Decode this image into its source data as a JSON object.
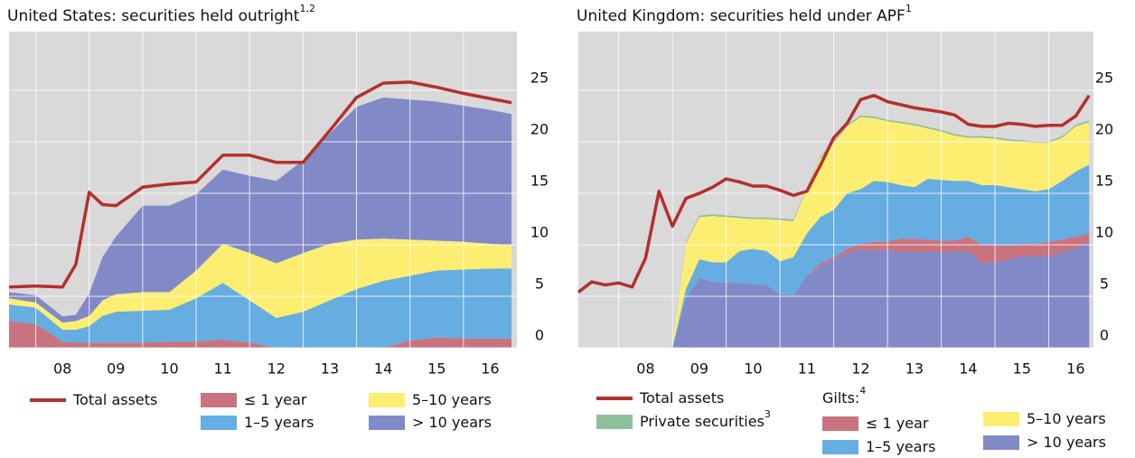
{
  "chart_data": [
    {
      "type": "area",
      "title": "United States: securities held outright",
      "title_superscript": "1,2",
      "x": [
        2007.5,
        2008.0,
        2008.5,
        2008.75,
        2009.0,
        2009.25,
        2009.5,
        2010.0,
        2010.5,
        2011.0,
        2011.5,
        2012.0,
        2012.5,
        2013.0,
        2013.5,
        2014.0,
        2014.5,
        2015.0,
        2015.5,
        2016.0,
        2016.5,
        2016.9
      ],
      "xlim": [
        2007.5,
        2017.0
      ],
      "xticks": [
        {
          "value": 2008,
          "label": "08"
        },
        {
          "value": 2009,
          "label": "09"
        },
        {
          "value": 2010,
          "label": "10"
        },
        {
          "value": 2011,
          "label": "11"
        },
        {
          "value": 2012,
          "label": "12"
        },
        {
          "value": 2013,
          "label": "13"
        },
        {
          "value": 2014,
          "label": "14"
        },
        {
          "value": 2015,
          "label": "15"
        },
        {
          "value": 2016,
          "label": "16"
        }
      ],
      "ylim": [
        0,
        30.7
      ],
      "yticks": [
        0,
        5,
        10,
        15,
        20,
        25
      ],
      "grid": true,
      "stacked": true,
      "series": [
        {
          "name": "Total assets",
          "type": "line",
          "color": "#b3302d",
          "values": [
            5.9,
            6.0,
            5.9,
            8.1,
            15.1,
            13.9,
            13.8,
            15.6,
            15.9,
            16.1,
            18.7,
            18.7,
            18.0,
            18.0,
            21.1,
            24.3,
            25.7,
            25.8,
            25.3,
            24.7,
            24.2,
            23.8
          ]
        },
        {
          "name": "≤ 1 year",
          "color": "#c9737f",
          "values": [
            2.6,
            2.3,
            0.6,
            0.5,
            0.5,
            0.5,
            0.5,
            0.5,
            0.6,
            0.6,
            0.8,
            0.5,
            0,
            0,
            0,
            0,
            0,
            0.7,
            1.0,
            0.9,
            0.9,
            0.9
          ]
        },
        {
          "name": "1–5 years",
          "color": "#66ade2",
          "values": [
            1.6,
            1.6,
            1.15,
            1.25,
            1.6,
            2.6,
            3.0,
            3.1,
            3.1,
            4.2,
            5.5,
            4.1,
            2.9,
            3.5,
            4.6,
            5.7,
            6.5,
            6.3,
            6.5,
            6.7,
            6.8,
            6.8
          ]
        },
        {
          "name": "5–10 years",
          "color": "#fdee72",
          "values": [
            0.6,
            0.5,
            0.7,
            0.85,
            1.0,
            1.5,
            1.7,
            1.8,
            1.7,
            2.7,
            3.8,
            4.6,
            5.3,
            5.7,
            5.5,
            4.8,
            4.1,
            3.5,
            2.9,
            2.7,
            2.4,
            2.3
          ]
        },
        {
          "name": "> 10 years",
          "color": "#8189c7",
          "values": [
            0.6,
            0.7,
            0.6,
            0.6,
            2.2,
            4.2,
            5.6,
            8.4,
            8.4,
            7.4,
            7.2,
            7.5,
            8.0,
            9.0,
            10.7,
            12.9,
            13.7,
            13.6,
            13.5,
            13.2,
            13.0,
            12.7
          ]
        }
      ]
    },
    {
      "type": "area",
      "title": "United Kingdom: securities held under APF",
      "title_superscript": "1",
      "x": [
        2007.25,
        2007.5,
        2007.75,
        2008.0,
        2008.25,
        2008.5,
        2008.75,
        2009.0,
        2009.25,
        2009.5,
        2009.75,
        2010.0,
        2010.25,
        2010.5,
        2010.75,
        2011.0,
        2011.25,
        2011.5,
        2011.75,
        2012.0,
        2012.25,
        2012.5,
        2012.75,
        2013.0,
        2013.25,
        2013.5,
        2013.75,
        2014.0,
        2014.25,
        2014.5,
        2014.75,
        2015.0,
        2015.25,
        2015.5,
        2015.75,
        2016.0,
        2016.25,
        2016.5,
        2016.75
      ],
      "xlim": [
        2007.25,
        2016.83
      ],
      "xticks": [
        {
          "value": 2008,
          "label": "08"
        },
        {
          "value": 2009,
          "label": "09"
        },
        {
          "value": 2010,
          "label": "10"
        },
        {
          "value": 2011,
          "label": "11"
        },
        {
          "value": 2012,
          "label": "12"
        },
        {
          "value": 2013,
          "label": "13"
        },
        {
          "value": 2014,
          "label": "14"
        },
        {
          "value": 2015,
          "label": "15"
        },
        {
          "value": 2016,
          "label": "16"
        }
      ],
      "ylim": [
        0,
        30.7
      ],
      "yticks": [
        0,
        5,
        10,
        15,
        20,
        25
      ],
      "grid": true,
      "stacked": true,
      "legend_group_title": "Gilts:",
      "legend_group_superscript": "4",
      "series": [
        {
          "name": "Total assets",
          "type": "line",
          "color": "#b3302d",
          "values": [
            5.4,
            6.4,
            6.1,
            6.3,
            5.9,
            8.7,
            15.2,
            11.8,
            14.5,
            15.0,
            15.6,
            16.4,
            16.1,
            15.7,
            15.7,
            15.3,
            14.8,
            15.2,
            17.7,
            20.4,
            21.8,
            24.1,
            24.5,
            23.9,
            23.6,
            23.3,
            23.1,
            22.9,
            22.6,
            21.7,
            21.5,
            21.5,
            21.8,
            21.7,
            21.5,
            21.6,
            21.6,
            22.5,
            24.5
          ]
        },
        {
          "name": "> 10 years",
          "color": "#8189c7",
          "values": [
            null,
            null,
            null,
            null,
            null,
            null,
            null,
            0,
            4.8,
            6.8,
            6.4,
            6.3,
            6.3,
            6.2,
            6.1,
            5.2,
            5.1,
            7.0,
            7.9,
            8.6,
            9.2,
            9.5,
            9.5,
            9.5,
            9.3,
            9.3,
            9.3,
            9.3,
            9.3,
            9.4,
            8.2,
            8.3,
            8.6,
            8.9,
            8.9,
            8.9,
            9.3,
            9.7,
            10.3
          ]
        },
        {
          "name": "≤ 1 year",
          "color": "#c9737f",
          "values": [
            null,
            null,
            null,
            null,
            null,
            null,
            null,
            0,
            0,
            0,
            0,
            0,
            0,
            0,
            0,
            0,
            0,
            0,
            0.3,
            0.2,
            0.4,
            0.6,
            0.8,
            0.8,
            1.3,
            1.3,
            1.2,
            1.1,
            1.1,
            1.4,
            1.8,
            1.7,
            1.3,
            1.2,
            1.2,
            1.4,
            1.2,
            1.1,
            0.8
          ]
        },
        {
          "name": "1–5 years",
          "color": "#66ade2",
          "values": [
            null,
            null,
            null,
            null,
            null,
            null,
            null,
            0,
            0.9,
            1.8,
            1.9,
            2.0,
            3.1,
            3.4,
            3.3,
            3.2,
            3.7,
            4.1,
            4.5,
            4.6,
            5.4,
            5.3,
            5.9,
            5.8,
            5.2,
            5.0,
            5.9,
            5.9,
            5.8,
            5.4,
            5.8,
            5.8,
            5.7,
            5.3,
            5.1,
            5.1,
            5.7,
            6.3,
            6.7
          ]
        },
        {
          "name": "5–10 years",
          "color": "#fdee72",
          "values": [
            null,
            null,
            null,
            null,
            null,
            null,
            null,
            0,
            4.4,
            4.1,
            4.5,
            4.4,
            3.2,
            2.9,
            3.1,
            4.0,
            3.5,
            4.3,
            5.7,
            6.5,
            6.5,
            7.0,
            6.1,
            5.9,
            6.0,
            6.0,
            4.9,
            4.7,
            4.4,
            4.2,
            4.6,
            4.5,
            4.5,
            4.6,
            4.7,
            4.5,
            4.2,
            4.4,
            4.1
          ]
        },
        {
          "name": "Private securities",
          "name_superscript": "3",
          "color": "#8fbf9b",
          "values": [
            null,
            null,
            null,
            null,
            null,
            null,
            null,
            0,
            0.15,
            0.15,
            0.15,
            0.15,
            0.15,
            0.15,
            0.15,
            0.15,
            0.15,
            0.15,
            0.15,
            0.15,
            0.15,
            0.15,
            0.15,
            0.15,
            0.15,
            0.15,
            0.15,
            0.15,
            0.15,
            0.15,
            0.15,
            0.15,
            0.15,
            0.15,
            0.15,
            0.15,
            0.15,
            0.15,
            0.15
          ]
        }
      ]
    }
  ]
}
